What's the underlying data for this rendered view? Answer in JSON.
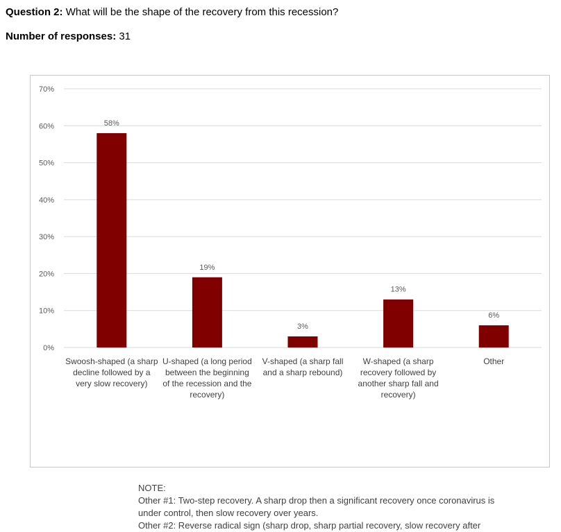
{
  "header": {
    "question_label": "Question 2:",
    "question_text": "What will be the shape of the recovery from this recession?",
    "responses_label": "Number of responses:",
    "responses_value": "31"
  },
  "chart_data": {
    "type": "bar",
    "categories": [
      [
        "Swoosh-shaped (a sharp",
        "decline followed by a",
        "very slow recovery)"
      ],
      [
        "U-shaped (a long period",
        "between the beginning",
        "of the recession and the",
        "recovery)"
      ],
      [
        "V-shaped (a sharp fall",
        "and a sharp rebound)"
      ],
      [
        "W-shaped (a sharp",
        "recovery followed by",
        "another sharp fall and",
        "recovery)"
      ],
      [
        "Other"
      ]
    ],
    "values": [
      58,
      19,
      3,
      13,
      6
    ],
    "data_labels": [
      "58%",
      "19%",
      "3%",
      "13%",
      "6%"
    ],
    "ylim": [
      0,
      70
    ],
    "yticks": [
      0,
      10,
      20,
      30,
      40,
      50,
      60,
      70
    ],
    "ytick_labels": [
      "0%",
      "10%",
      "20%",
      "30%",
      "40%",
      "50%",
      "60%",
      "70%"
    ],
    "grid": true,
    "bar_color": "#800000",
    "grid_color": "#d9d9d9",
    "tick_color": "#595959",
    "category_label_color": "#404040"
  },
  "note": {
    "title": "NOTE:",
    "lines": [
      "Other #1: Two-step recovery.  A sharp drop then a significant recovery once coronavirus is",
      "under control, then slow recovery over years.",
      "Other #2: Reverse radical sign (sharp drop, sharp partial recovery, slow recovery after"
    ]
  }
}
